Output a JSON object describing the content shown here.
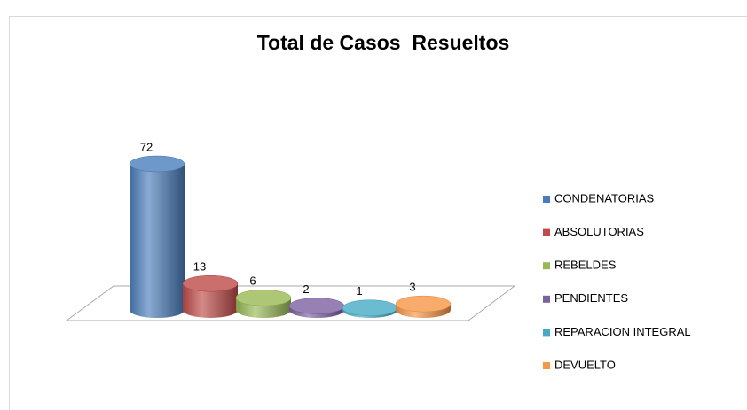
{
  "chart_data": {
    "type": "bar",
    "title": "Total de Casos  Resueltos",
    "series": [
      {
        "name": "CONDENATORIAS",
        "color": "#4a7ebb",
        "values": [
          72
        ]
      },
      {
        "name": "ABSOLUTORIAS",
        "color": "#be4b48",
        "values": [
          13
        ]
      },
      {
        "name": "REBELDES",
        "color": "#98b954",
        "values": [
          6
        ]
      },
      {
        "name": "PENDIENTES",
        "color": "#7d60a0",
        "values": [
          2
        ]
      },
      {
        "name": "REPARACION INTEGRAL",
        "color": "#46aac5",
        "values": [
          1
        ]
      },
      {
        "name": "DEVUELTO",
        "color": "#f79646",
        "values": [
          3
        ]
      }
    ],
    "legend": "right"
  }
}
